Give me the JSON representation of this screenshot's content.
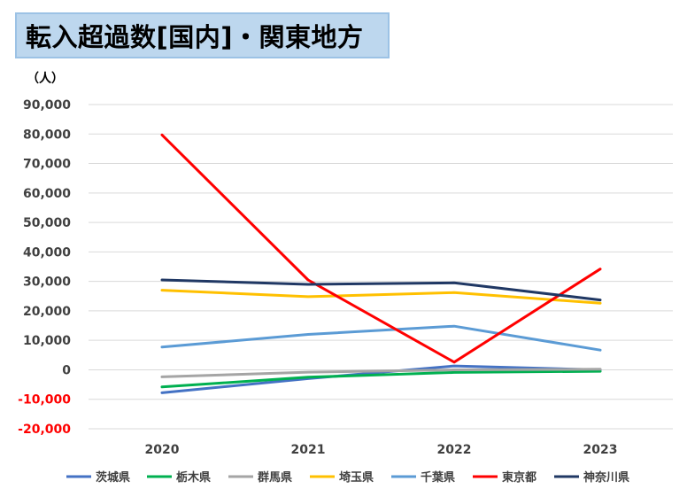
{
  "title": "転入超過数[国内]・関東地方",
  "chart_data": {
    "type": "line",
    "title": "転入超過数[国内]・関東地方",
    "unit_label": "（人）",
    "x": [
      "2020",
      "2021",
      "2022",
      "2023"
    ],
    "ylim": [
      -20000,
      90000
    ],
    "yticks": [
      -20000,
      -10000,
      0,
      10000,
      20000,
      30000,
      40000,
      50000,
      60000,
      70000,
      80000,
      90000
    ],
    "ytick_labels": [
      "-20,000",
      "-10,000",
      "0",
      "10,000",
      "20,000",
      "30,000",
      "40,000",
      "50,000",
      "60,000",
      "70,000",
      "80,000",
      "90,000"
    ],
    "negative_tick_color": "#ff0000",
    "grid": true,
    "legend_position": "bottom",
    "series": [
      {
        "name": "茨城県",
        "color": "#4472c4",
        "values": [
          -7800,
          -3000,
          1300,
          0
        ]
      },
      {
        "name": "栃木県",
        "color": "#00b050",
        "values": [
          -5800,
          -2500,
          -900,
          -500
        ]
      },
      {
        "name": "群馬県",
        "color": "#a5a5a5",
        "values": [
          -2400,
          -800,
          0,
          200
        ]
      },
      {
        "name": "埼玉県",
        "color": "#ffc000",
        "values": [
          27000,
          24800,
          26200,
          22600
        ]
      },
      {
        "name": "千葉県",
        "color": "#5b9bd5",
        "values": [
          7700,
          12000,
          14800,
          6700
        ]
      },
      {
        "name": "東京都",
        "color": "#ff0000",
        "values": [
          79700,
          30500,
          2600,
          34200
        ]
      },
      {
        "name": "神奈川県",
        "color": "#203864",
        "values": [
          30500,
          29000,
          29500,
          23700
        ]
      }
    ]
  }
}
